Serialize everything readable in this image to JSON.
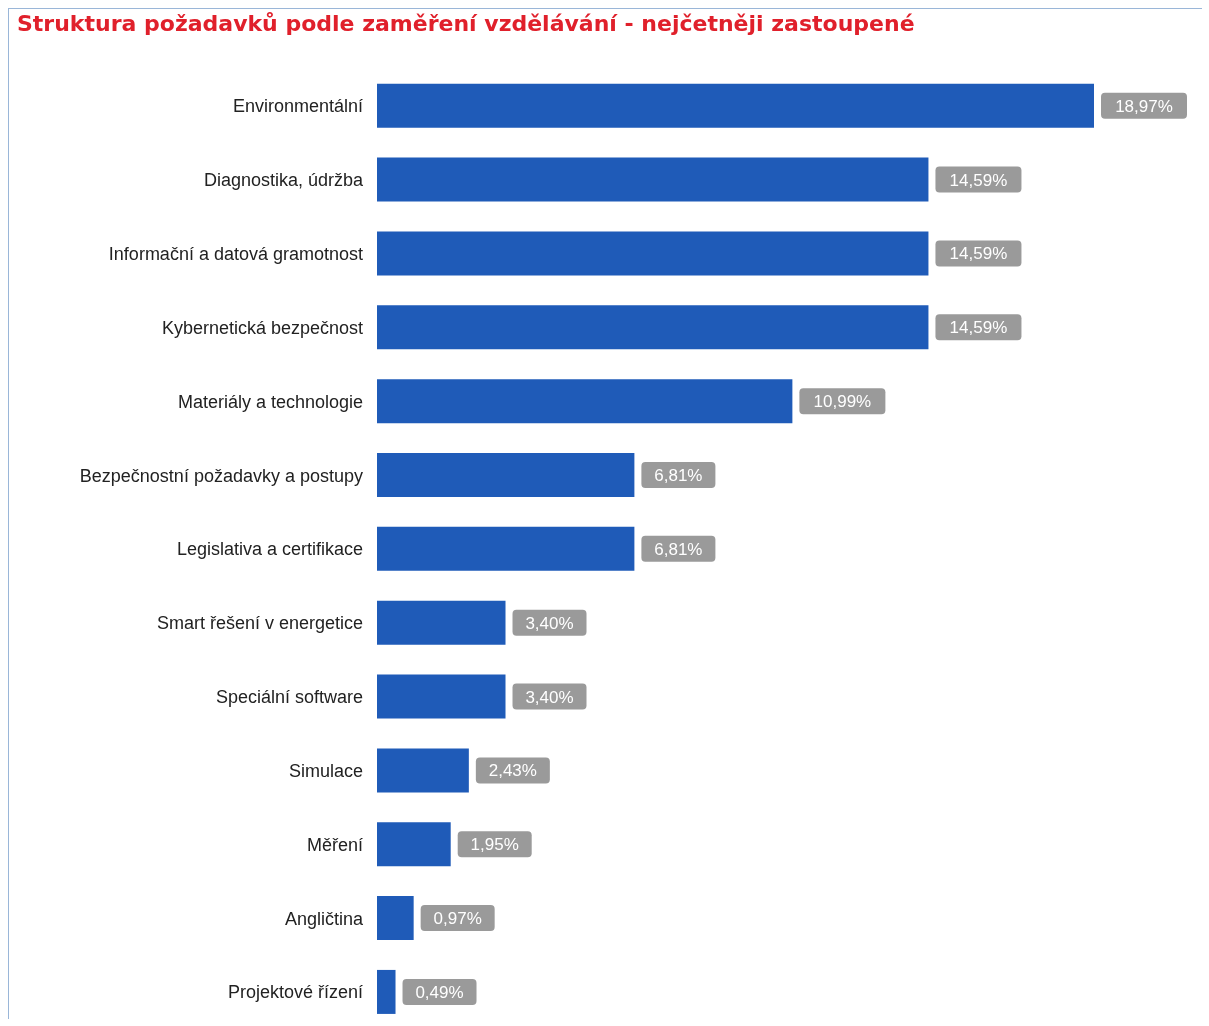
{
  "chart_data": {
    "type": "bar",
    "orientation": "horizontal",
    "title": "Struktura požadavků podle zaměření vzdělávání - nejčetněji zastoupené",
    "categories": [
      "Environmentální",
      "Diagnostika, údržba",
      "Informační a datová gramotnost",
      "Kybernetická bezpečnost",
      "Materiály a technologie",
      "Bezpečnostní požadavky a postupy",
      "Legislativa a certifikace",
      "Smart řešení v energetice",
      "Speciální software",
      "Simulace",
      "Měření",
      "Angličtina",
      "Projektové řízení"
    ],
    "values": [
      18.97,
      14.59,
      14.59,
      14.59,
      10.99,
      6.81,
      6.81,
      3.4,
      3.4,
      2.43,
      1.95,
      0.97,
      0.49
    ],
    "value_labels": [
      "18,97%",
      "14,59%",
      "14,59%",
      "14,59%",
      "10,99%",
      "6,81%",
      "6,81%",
      "3,40%",
      "3,40%",
      "2,43%",
      "1,95%",
      "0,97%",
      "0,49%"
    ],
    "color": "#1f5bb8"
  }
}
